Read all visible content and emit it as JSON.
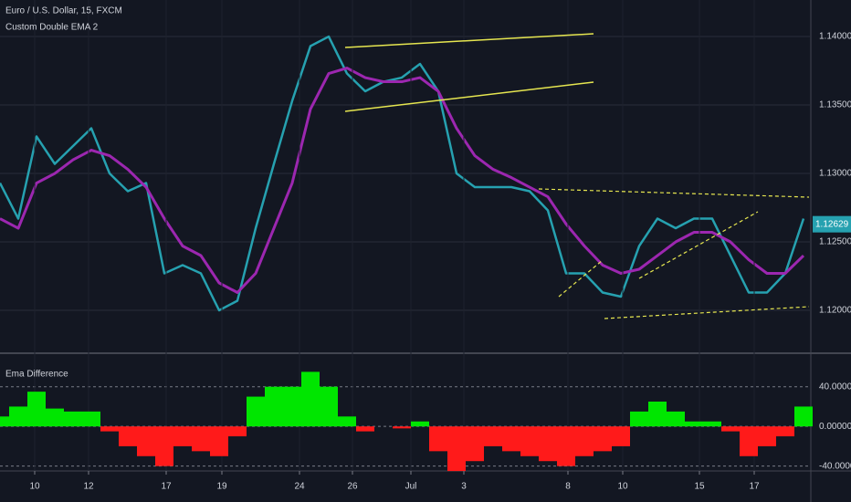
{
  "chart_data": [
    {
      "type": "line",
      "title": "Euro / U.S. Dollar, 15, FXCM",
      "subtitle": "Custom Double EMA 2",
      "x": [
        0,
        1,
        2,
        3,
        4,
        5,
        6,
        7,
        8,
        9,
        10,
        11,
        12,
        13,
        14,
        15,
        16,
        17,
        18,
        19,
        20,
        21,
        22,
        23,
        24,
        25,
        26,
        27,
        28,
        29,
        30,
        31,
        32,
        33,
        34,
        35,
        36,
        37,
        38,
        39,
        40,
        41,
        42,
        43,
        44
      ],
      "series": [
        {
          "color": "#26a1b0",
          "values": [
            1.1293,
            1.1267,
            1.1327,
            1.1307,
            1.132,
            1.1333,
            1.13,
            1.1287,
            1.1293,
            1.1227,
            1.1233,
            1.1227,
            1.12,
            1.1207,
            1.126,
            1.1307,
            1.1353,
            1.1393,
            1.14,
            1.1373,
            1.136,
            1.1367,
            1.137,
            1.138,
            1.136,
            1.13,
            1.129,
            1.129,
            1.129,
            1.1287,
            1.1273,
            1.1227,
            1.1227,
            1.1213,
            1.121,
            1.1247,
            1.1267,
            1.126,
            1.1267,
            1.1267,
            1.124,
            1.1213,
            1.1213,
            1.1227,
            1.1267
          ]
        },
        {
          "color": "#9c27b0",
          "values": [
            1.1267,
            1.126,
            1.1293,
            1.13,
            1.131,
            1.1317,
            1.1313,
            1.1303,
            1.129,
            1.1267,
            1.1247,
            1.124,
            1.122,
            1.1213,
            1.1227,
            1.126,
            1.1293,
            1.1347,
            1.1373,
            1.1377,
            1.137,
            1.1367,
            1.1367,
            1.137,
            1.136,
            1.1333,
            1.1313,
            1.1303,
            1.1297,
            1.129,
            1.1283,
            1.1263,
            1.1247,
            1.1233,
            1.1227,
            1.123,
            1.124,
            1.125,
            1.1257,
            1.1257,
            1.125,
            1.1237,
            1.1227,
            1.1227,
            1.124
          ]
        }
      ],
      "last_price": {
        "value": 1.12629,
        "label": "1.12629"
      },
      "xlim": [
        0,
        44
      ],
      "ylim": [
        1.117,
        1.14267
      ],
      "yticks": [
        {
          "value": 1.14,
          "label": "1.14000"
        },
        {
          "value": 1.135,
          "label": "1.13500"
        },
        {
          "value": 1.13,
          "label": "1.13000"
        },
        {
          "value": 1.125,
          "label": "1.12500"
        },
        {
          "value": 1.12,
          "label": "1.12000"
        }
      ],
      "grid": true
    },
    {
      "type": "bar",
      "title": "Ema Difference",
      "x": [
        0,
        1,
        2,
        3,
        4,
        5,
        6,
        7,
        8,
        9,
        10,
        11,
        12,
        13,
        14,
        15,
        16,
        17,
        18,
        19,
        20,
        21,
        22,
        23,
        24,
        25,
        26,
        27,
        28,
        29,
        30,
        31,
        32,
        33,
        34,
        35,
        36,
        37,
        38,
        39,
        40,
        41,
        42,
        43,
        44
      ],
      "values": [
        10,
        20,
        35,
        18,
        15,
        15,
        -5,
        -20,
        -30,
        -40,
        -20,
        -25,
        -30,
        -10,
        30,
        40,
        40,
        55,
        40,
        10,
        -5,
        0,
        -2,
        5,
        -25,
        -45,
        -35,
        -20,
        -25,
        -30,
        -35,
        -40,
        -30,
        -25,
        -20,
        15,
        25,
        15,
        5,
        5,
        -5,
        -30,
        -20,
        -10,
        20
      ],
      "positive_color": "#00e600",
      "negative_color": "#ff1a1a",
      "xlim": [
        0,
        44
      ],
      "ylim": [
        -44,
        71
      ],
      "yticks": [
        {
          "value": 40,
          "label": "40.00000"
        },
        {
          "value": 0,
          "label": "0.00000"
        },
        {
          "value": -40,
          "label": "-40.00000"
        }
      ],
      "xticks": [
        {
          "value": 1.9,
          "label": "10"
        },
        {
          "value": 4.85,
          "label": "12"
        },
        {
          "value": 9.1,
          "label": "17"
        },
        {
          "value": 12.15,
          "label": "19"
        },
        {
          "value": 16.4,
          "label": "24"
        },
        {
          "value": 19.3,
          "label": "26"
        },
        {
          "value": 22.5,
          "label": "Jul"
        },
        {
          "value": 25.4,
          "label": "3"
        },
        {
          "value": 31.1,
          "label": "8"
        },
        {
          "value": 34.1,
          "label": "10"
        },
        {
          "value": 38.3,
          "label": "15"
        },
        {
          "value": 41.3,
          "label": "17"
        }
      ],
      "grid": true
    }
  ]
}
